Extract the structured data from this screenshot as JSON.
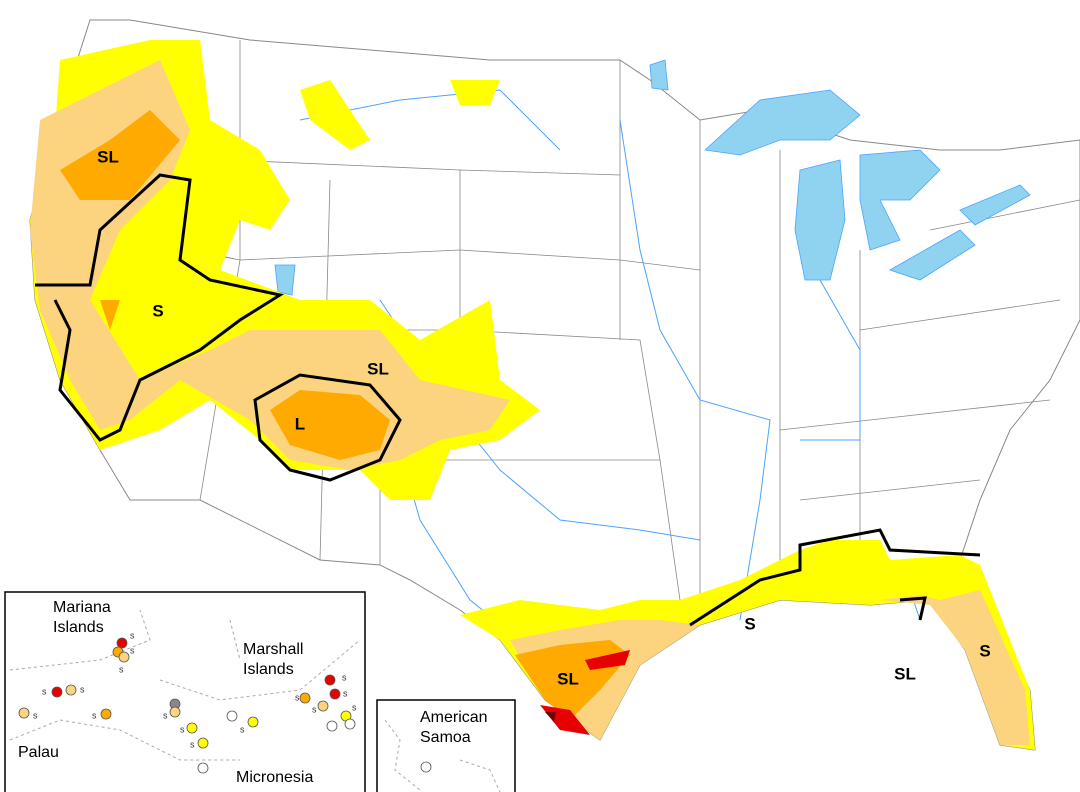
{
  "map": {
    "impact_labels": [
      "SL",
      "S",
      "L",
      "SL",
      "SL",
      "S",
      "SL",
      "S"
    ],
    "insets": {
      "pacific": {
        "mariana": "Mariana\nIslands",
        "marshall": "Marshall\nIslands",
        "palau": "Palau",
        "micronesia": "Micronesia"
      },
      "samoa": "American\nSamoa"
    },
    "dot_labels": [
      "s",
      "s",
      "s",
      "s",
      "s",
      "s",
      "s",
      "s",
      "s",
      "s",
      "s",
      "s",
      "s",
      "s",
      "s",
      "s"
    ]
  }
}
